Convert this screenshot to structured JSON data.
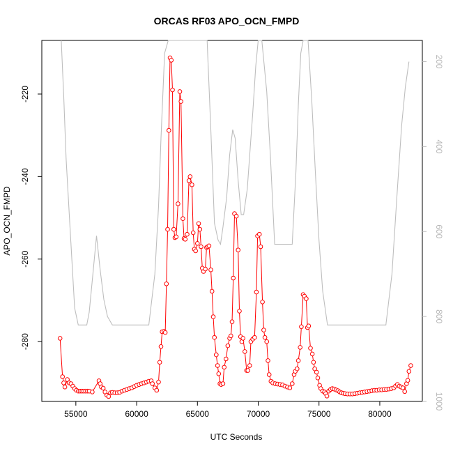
{
  "chart_data": {
    "type": "line",
    "title": "ORCAS RF03 APO_OCN_FMPD",
    "xlabel": "UTC Seconds",
    "ylabel": "APO_OCN_FMPD",
    "xlim": [
      52200,
      83500
    ],
    "ylim": [
      -294.5,
      -207.0
    ],
    "y2lim": [
      1000,
      150
    ],
    "x_ticks": [
      55000,
      60000,
      65000,
      70000,
      75000,
      80000
    ],
    "x_tick_labels": [
      "55000",
      "60000",
      "65000",
      "70000",
      "75000",
      "80000"
    ],
    "y_ticks": [
      -280,
      -260,
      -240,
      -220
    ],
    "y_tick_labels": [
      "-280",
      "-260",
      "-240",
      "-220"
    ],
    "y2_ticks": [
      200,
      400,
      600,
      800,
      1000
    ],
    "y2_tick_labels": [
      "200",
      "400",
      "600",
      "800",
      "1000"
    ],
    "colors": {
      "primary_series": "#ff0000",
      "secondary_series": "#bebebe",
      "axes": "#000000",
      "right_axis": "#b8b8b8"
    },
    "series": [
      {
        "axis": "left",
        "marker": "open-circle",
        "values": [
          [
            53700,
            -279.2
          ],
          [
            53900,
            -288.5
          ],
          [
            54000,
            -290.0
          ],
          [
            54100,
            -291.0
          ],
          [
            54300,
            -289.2
          ],
          [
            54450,
            -290.0
          ],
          [
            54600,
            -290.2
          ],
          [
            54750,
            -290.8
          ],
          [
            54900,
            -291.4
          ],
          [
            55050,
            -291.8
          ],
          [
            55200,
            -292.0
          ],
          [
            55350,
            -292.0
          ],
          [
            55500,
            -292.0
          ],
          [
            55650,
            -292.0
          ],
          [
            55800,
            -292.0
          ],
          [
            55950,
            -292.0
          ],
          [
            56100,
            -292.0
          ],
          [
            56350,
            -292.2
          ],
          [
            56900,
            -289.5
          ],
          [
            57000,
            -290.2
          ],
          [
            57100,
            -291.0
          ],
          [
            57250,
            -291.3
          ],
          [
            57400,
            -292.2
          ],
          [
            57550,
            -293.0
          ],
          [
            57700,
            -293.3
          ],
          [
            57850,
            -292.4
          ],
          [
            58000,
            -292.3
          ],
          [
            58200,
            -292.4
          ],
          [
            58400,
            -292.4
          ],
          [
            58600,
            -292.3
          ],
          [
            58800,
            -292.0
          ],
          [
            59000,
            -291.8
          ],
          [
            59200,
            -291.6
          ],
          [
            59400,
            -291.4
          ],
          [
            59600,
            -291.2
          ],
          [
            59800,
            -290.9
          ],
          [
            60000,
            -290.6
          ],
          [
            60200,
            -290.4
          ],
          [
            60400,
            -290.2
          ],
          [
            60600,
            -290.0
          ],
          [
            60800,
            -289.8
          ],
          [
            61000,
            -289.6
          ],
          [
            61200,
            -289.5
          ],
          [
            61300,
            -290.2
          ],
          [
            61500,
            -291.2
          ],
          [
            61650,
            -291.8
          ],
          [
            61800,
            -289.8
          ],
          [
            61900,
            -285.0
          ],
          [
            62000,
            -281.2
          ],
          [
            62100,
            -277.6
          ],
          [
            62250,
            -277.5
          ],
          [
            62350,
            -277.8
          ],
          [
            62450,
            -266.0
          ],
          [
            62550,
            -252.8
          ],
          [
            62650,
            -228.8
          ],
          [
            62750,
            -211.2
          ],
          [
            62850,
            -211.8
          ],
          [
            62950,
            -219.0
          ],
          [
            63050,
            -252.8
          ],
          [
            63150,
            -254.8
          ],
          [
            63250,
            -254.6
          ],
          [
            63400,
            -246.6
          ],
          [
            63550,
            -219.4
          ],
          [
            63650,
            -221.8
          ],
          [
            63800,
            -250.2
          ],
          [
            63900,
            -255.0
          ],
          [
            64000,
            -255.2
          ],
          [
            64150,
            -254.0
          ],
          [
            64300,
            -241.0
          ],
          [
            64400,
            -240.0
          ],
          [
            64550,
            -242.0
          ],
          [
            64650,
            -253.6
          ],
          [
            64750,
            -257.6
          ],
          [
            64850,
            -258.0
          ],
          [
            65000,
            -256.2
          ],
          [
            65100,
            -251.4
          ],
          [
            65200,
            -252.8
          ],
          [
            65300,
            -257.0
          ],
          [
            65400,
            -262.2
          ],
          [
            65500,
            -263.0
          ],
          [
            65650,
            -262.4
          ],
          [
            65750,
            -257.2
          ],
          [
            65850,
            -257.0
          ],
          [
            65950,
            -256.8
          ],
          [
            66100,
            -262.6
          ],
          [
            66200,
            -267.8
          ],
          [
            66300,
            -274.0
          ],
          [
            66400,
            -279.0
          ],
          [
            66550,
            -283.2
          ],
          [
            66650,
            -285.8
          ],
          [
            66750,
            -287.8
          ],
          [
            66850,
            -290.2
          ],
          [
            66950,
            -290.4
          ],
          [
            67100,
            -290.2
          ],
          [
            67200,
            -286.2
          ],
          [
            67350,
            -284.2
          ],
          [
            67500,
            -281.0
          ],
          [
            67650,
            -279.2
          ],
          [
            67750,
            -278.6
          ],
          [
            67850,
            -275.2
          ],
          [
            67950,
            -264.6
          ],
          [
            68050,
            -249.0
          ],
          [
            68200,
            -249.6
          ],
          [
            68350,
            -257.8
          ],
          [
            68450,
            -272.6
          ],
          [
            68550,
            -278.8
          ],
          [
            68650,
            -280.0
          ],
          [
            68750,
            -279.2
          ],
          [
            68900,
            -282.4
          ],
          [
            69050,
            -287.0
          ],
          [
            69150,
            -287.0
          ],
          [
            69300,
            -285.8
          ],
          [
            69400,
            -280.0
          ],
          [
            69550,
            -279.4
          ],
          [
            69700,
            -279.0
          ],
          [
            69850,
            -268.0
          ],
          [
            69950,
            -254.4
          ],
          [
            70100,
            -254.0
          ],
          [
            70200,
            -257.0
          ],
          [
            70350,
            -270.4
          ],
          [
            70450,
            -277.2
          ],
          [
            70550,
            -279.0
          ],
          [
            70700,
            -280.0
          ],
          [
            70800,
            -284.6
          ],
          [
            70900,
            -288.0
          ],
          [
            71050,
            -289.6
          ],
          [
            71200,
            -290.0
          ],
          [
            71400,
            -290.2
          ],
          [
            71600,
            -290.3
          ],
          [
            71800,
            -290.4
          ],
          [
            72000,
            -290.5
          ],
          [
            72200,
            -290.8
          ],
          [
            72400,
            -291.0
          ],
          [
            72600,
            -291.2
          ],
          [
            72800,
            -290.2
          ],
          [
            72950,
            -288.0
          ],
          [
            73050,
            -287.2
          ],
          [
            73200,
            -286.6
          ],
          [
            73300,
            -284.6
          ],
          [
            73450,
            -281.4
          ],
          [
            73550,
            -276.4
          ],
          [
            73700,
            -268.6
          ],
          [
            73800,
            -269.0
          ],
          [
            73950,
            -269.6
          ],
          [
            74050,
            -276.6
          ],
          [
            74150,
            -276.2
          ],
          [
            74300,
            -281.6
          ],
          [
            74450,
            -283.0
          ],
          [
            74550,
            -285.0
          ],
          [
            74650,
            -286.6
          ],
          [
            74800,
            -287.4
          ],
          [
            74900,
            -288.8
          ],
          [
            75050,
            -290.6
          ],
          [
            75150,
            -291.4
          ],
          [
            75300,
            -292.0
          ],
          [
            75450,
            -292.2
          ],
          [
            75550,
            -292.6
          ],
          [
            75650,
            -293.2
          ],
          [
            75800,
            -292.0
          ],
          [
            75950,
            -291.6
          ],
          [
            76100,
            -291.4
          ],
          [
            76250,
            -291.5
          ],
          [
            76400,
            -291.7
          ],
          [
            76550,
            -291.9
          ],
          [
            76700,
            -292.2
          ],
          [
            76850,
            -292.4
          ],
          [
            77000,
            -292.5
          ],
          [
            77150,
            -292.6
          ],
          [
            77350,
            -292.7
          ],
          [
            77550,
            -292.7
          ],
          [
            77750,
            -292.7
          ],
          [
            77950,
            -292.6
          ],
          [
            78150,
            -292.5
          ],
          [
            78350,
            -292.4
          ],
          [
            78550,
            -292.3
          ],
          [
            78750,
            -292.2
          ],
          [
            78950,
            -292.1
          ],
          [
            79150,
            -292.0
          ],
          [
            79350,
            -291.9
          ],
          [
            79550,
            -291.8
          ],
          [
            79750,
            -291.8
          ],
          [
            79950,
            -291.7
          ],
          [
            80150,
            -291.7
          ],
          [
            80350,
            -291.6
          ],
          [
            80550,
            -291.6
          ],
          [
            80750,
            -291.5
          ],
          [
            80950,
            -291.4
          ],
          [
            81150,
            -291.2
          ],
          [
            81300,
            -290.8
          ],
          [
            81450,
            -290.4
          ],
          [
            81600,
            -290.8
          ],
          [
            81750,
            -291.0
          ],
          [
            81900,
            -291.2
          ],
          [
            82050,
            -292.1
          ],
          [
            82200,
            -290.2
          ],
          [
            82300,
            -289.4
          ],
          [
            82400,
            -287.2
          ],
          [
            82550,
            -285.8
          ]
        ]
      },
      {
        "axis": "right",
        "values": [
          [
            53800,
            150
          ],
          [
            54000,
            280
          ],
          [
            54200,
            430
          ],
          [
            54500,
            580
          ],
          [
            54900,
            780
          ],
          [
            55200,
            820
          ],
          [
            55900,
            820
          ],
          [
            56100,
            790
          ],
          [
            56400,
            700
          ],
          [
            56700,
            610
          ],
          [
            57000,
            690
          ],
          [
            57300,
            760
          ],
          [
            57600,
            800
          ],
          [
            58000,
            820
          ],
          [
            58400,
            820
          ],
          [
            59000,
            820
          ],
          [
            59500,
            820
          ],
          [
            60200,
            820
          ],
          [
            61000,
            820
          ],
          [
            61500,
            700
          ],
          [
            61800,
            540
          ],
          [
            62000,
            380
          ],
          [
            62300,
            180
          ],
          [
            62600,
            150
          ],
          [
            62750,
            100
          ],
          [
            63000,
            150
          ],
          [
            63100,
            90
          ],
          [
            63200,
            150
          ],
          [
            63400,
            100
          ],
          [
            63500,
            150
          ],
          [
            64000,
            150
          ],
          [
            64300,
            110
          ],
          [
            64450,
            150
          ],
          [
            64700,
            130
          ],
          [
            64900,
            150
          ],
          [
            65200,
            120
          ],
          [
            65400,
            150
          ],
          [
            65800,
            150
          ],
          [
            66100,
            360
          ],
          [
            66400,
            580
          ],
          [
            66700,
            620
          ],
          [
            66900,
            630
          ],
          [
            67100,
            590
          ],
          [
            67400,
            520
          ],
          [
            67650,
            420
          ],
          [
            67900,
            360
          ],
          [
            68100,
            380
          ],
          [
            68350,
            480
          ],
          [
            68600,
            560
          ],
          [
            68800,
            560
          ],
          [
            69100,
            500
          ],
          [
            69300,
            420
          ],
          [
            69550,
            320
          ],
          [
            69800,
            210
          ],
          [
            70000,
            150
          ],
          [
            70300,
            150
          ],
          [
            70700,
            270
          ],
          [
            71000,
            420
          ],
          [
            71350,
            630
          ],
          [
            71800,
            630
          ],
          [
            72300,
            630
          ],
          [
            72800,
            630
          ],
          [
            73100,
            460
          ],
          [
            73300,
            300
          ],
          [
            73500,
            180
          ],
          [
            73700,
            140
          ],
          [
            73900,
            130
          ],
          [
            74100,
            150
          ],
          [
            74400,
            290
          ],
          [
            74700,
            460
          ],
          [
            75000,
            620
          ],
          [
            75300,
            740
          ],
          [
            75700,
            820
          ],
          [
            76000,
            820
          ],
          [
            77000,
            820
          ],
          [
            78000,
            820
          ],
          [
            79000,
            820
          ],
          [
            80000,
            820
          ],
          [
            80500,
            820
          ],
          [
            81000,
            700
          ],
          [
            81400,
            520
          ],
          [
            81800,
            350
          ],
          [
            82100,
            260
          ],
          [
            82400,
            200
          ]
        ]
      }
    ]
  }
}
